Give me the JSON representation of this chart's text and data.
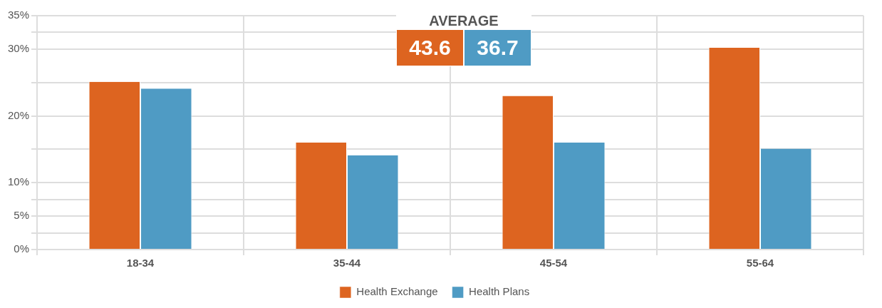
{
  "chart_data": {
    "type": "bar",
    "categories": [
      "18-34",
      "35-44",
      "45-54",
      "55-64"
    ],
    "series": [
      {
        "name": "Health Exchange",
        "color": "#dd6420",
        "values": [
          25.1,
          16,
          23,
          30.2
        ]
      },
      {
        "name": "Health Plans",
        "color": "#4f9bc4",
        "values": [
          24.1,
          14.1,
          16,
          15.1
        ]
      }
    ],
    "ylim": [
      0,
      35
    ],
    "yticks": [
      {
        "value": 0,
        "label": "0%"
      },
      {
        "value": 2.5,
        "label": null
      },
      {
        "value": 5,
        "label": "5%"
      },
      {
        "value": 7.5,
        "label": null
      },
      {
        "value": 10,
        "label": "10%"
      },
      {
        "value": 15,
        "label": null
      },
      {
        "value": 20,
        "label": "20%"
      },
      {
        "value": 25,
        "label": null
      },
      {
        "value": 30,
        "label": "30%"
      },
      {
        "value": 32.5,
        "label": null
      },
      {
        "value": 35,
        "label": "35%"
      }
    ],
    "annotations": [
      "AVERAGE",
      "43.6",
      "36.7"
    ],
    "grid": true,
    "legend": "bottom"
  }
}
